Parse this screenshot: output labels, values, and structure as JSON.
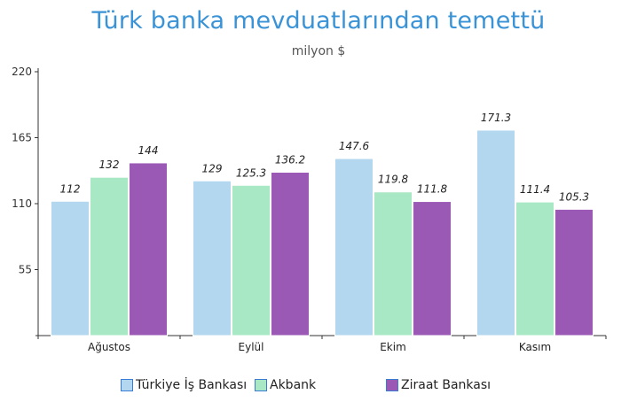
{
  "chart_data": {
    "type": "bar",
    "title": "Türk banka mevduatlarından temettü",
    "subtitle": "milyon $",
    "categories": [
      "Ağustos",
      "Eylül",
      "Ekim",
      "Kasım"
    ],
    "series": [
      {
        "name": "Türkiye İş Bankası",
        "values": [
          112,
          129,
          147.6,
          171.3
        ],
        "color": "#b4d7f0"
      },
      {
        "name": "Akbank",
        "values": [
          132,
          125.3,
          119.8,
          111.4
        ],
        "color": "#a8e8c4"
      },
      {
        "name": "Ziraat Bankası",
        "values": [
          144,
          136.2,
          111.8,
          105.3
        ],
        "color": "#9b59b6"
      }
    ],
    "data_labels": [
      [
        "112",
        "129",
        "147.6",
        "171.3"
      ],
      [
        "132",
        "125.3",
        "119.8",
        "111.4"
      ],
      [
        "144",
        "136.2",
        "111.8",
        "105.3"
      ]
    ],
    "yticks": [
      "55",
      "110",
      "165",
      "220"
    ],
    "ylim": [
      0,
      220
    ],
    "grid": false,
    "legend_position": "bottom"
  }
}
